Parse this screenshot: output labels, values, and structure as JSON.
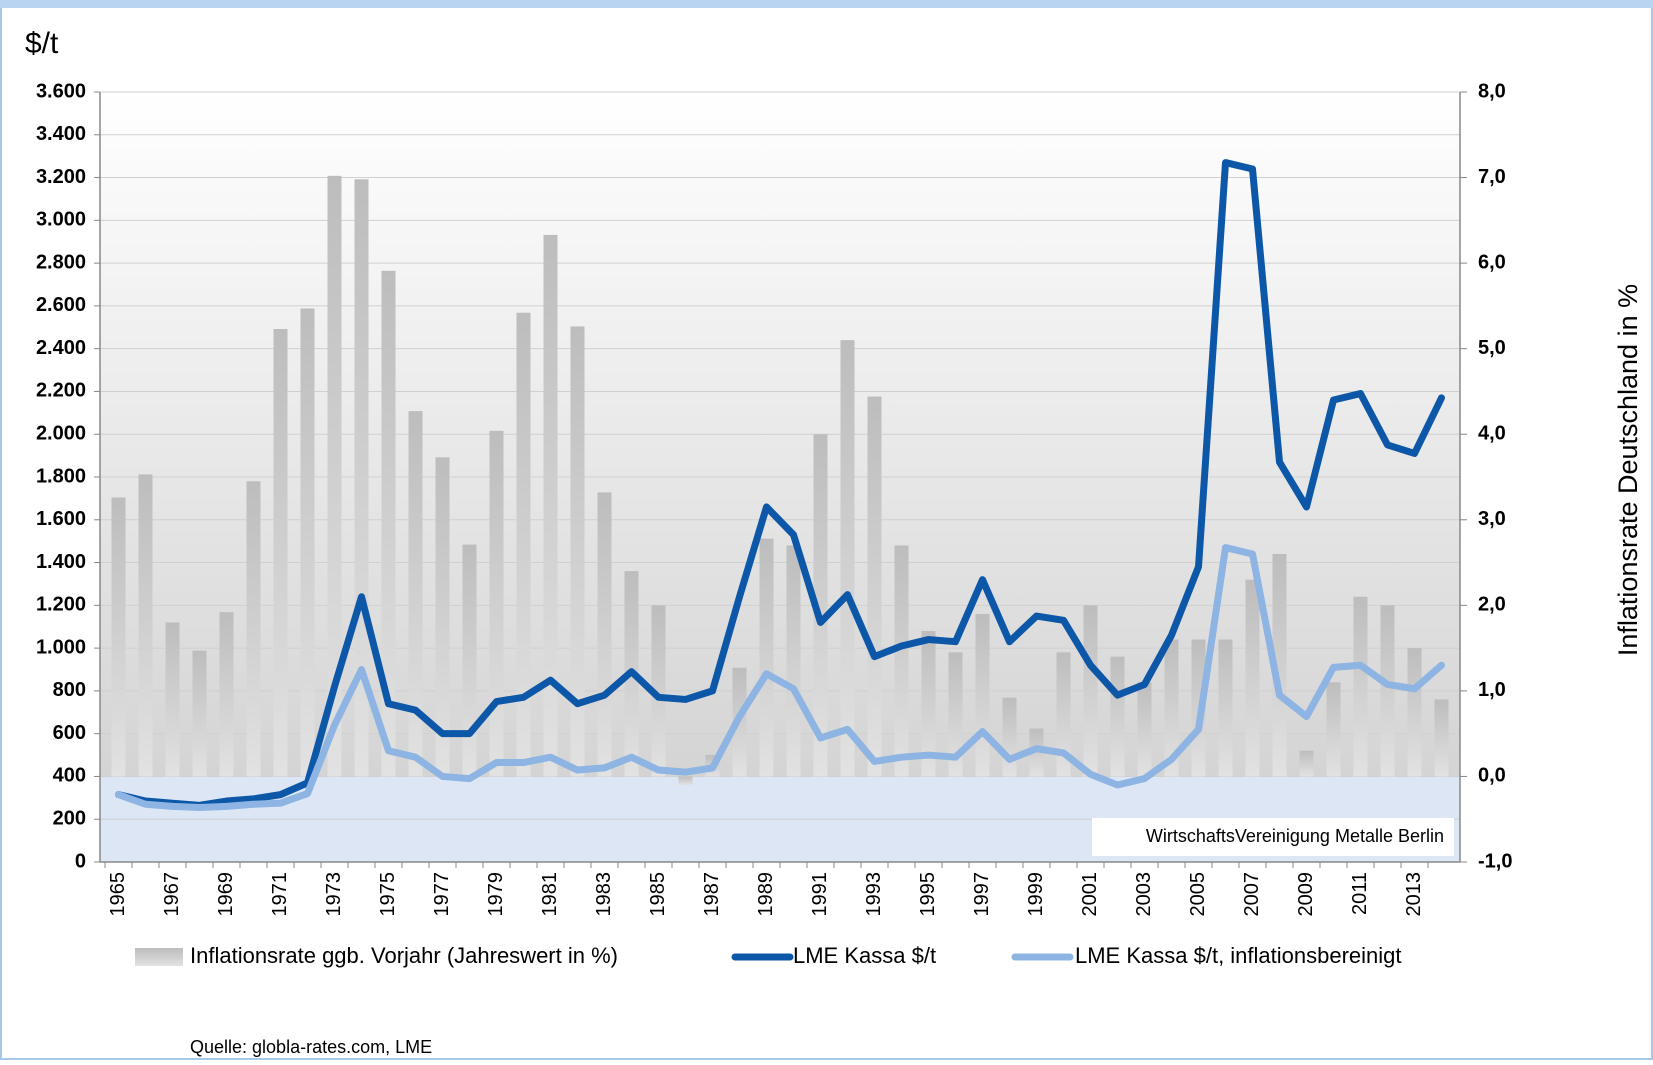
{
  "chart_data": {
    "type": "bar-line",
    "y_unit_label": "$/t",
    "y2_label": "Inflationsrate Deutschland in %",
    "annotation": "WirtschaftsVereinigung Metalle Berlin",
    "source": "Quelle: globla-rates.com, LME",
    "categories": [
      "1965",
      null,
      "1967",
      null,
      "1969",
      null,
      "1971",
      null,
      "1973",
      null,
      "1975",
      null,
      "1977",
      null,
      "1979",
      null,
      "1981",
      null,
      "1983",
      null,
      "1985",
      null,
      "1987",
      null,
      "1989",
      null,
      "1991",
      null,
      "1993",
      null,
      "1995",
      null,
      "1997",
      null,
      "1999",
      null,
      "2001",
      null,
      "2003",
      null,
      "2005",
      null,
      "2007",
      null,
      "2009",
      null,
      "2011",
      null,
      "2013",
      null
    ],
    "series": [
      {
        "name": "Inflationsrate ggb. Vorjahr (Jahreswert in %)",
        "type": "bar",
        "axis": "y2",
        "color": "#c4c4c4",
        "values": [
          3.26,
          3.53,
          1.8,
          1.47,
          1.92,
          3.45,
          5.23,
          5.47,
          7.02,
          6.98,
          5.91,
          4.27,
          3.73,
          2.71,
          4.04,
          5.42,
          6.33,
          5.26,
          3.32,
          2.4,
          2.0,
          -0.1,
          0.25,
          1.27,
          2.78,
          2.7,
          4.0,
          5.1,
          4.44,
          2.7,
          1.7,
          1.45,
          1.9,
          0.92,
          0.56,
          1.45,
          2.0,
          1.4,
          1.1,
          1.6,
          1.6,
          1.6,
          2.3,
          2.6,
          0.3,
          1.1,
          2.1,
          2.0,
          1.5,
          0.9
        ]
      },
      {
        "name": "LME Kassa $/t",
        "type": "line",
        "color": "#0d57a8",
        "values": [
          315,
          285,
          275,
          265,
          285,
          295,
          315,
          370,
          820,
          1240,
          740,
          710,
          600,
          600,
          750,
          770,
          850,
          740,
          780,
          890,
          770,
          760,
          800,
          1240,
          1660,
          1530,
          1120,
          1250,
          960,
          1010,
          1040,
          1030,
          1320,
          1030,
          1150,
          1130,
          920,
          780,
          830,
          1060,
          1380,
          3270,
          3240,
          1870,
          1660,
          2160,
          2190,
          1950,
          1910,
          2170
        ]
      },
      {
        "name": "LME Kassa $/t, inflationsbereinigt",
        "type": "line",
        "color": "#8db4e2",
        "values": [
          315,
          270,
          260,
          255,
          260,
          270,
          275,
          320,
          640,
          900,
          520,
          490,
          400,
          390,
          465,
          465,
          490,
          430,
          440,
          490,
          430,
          420,
          440,
          680,
          880,
          810,
          580,
          620,
          470,
          490,
          500,
          490,
          610,
          480,
          530,
          510,
          410,
          360,
          390,
          480,
          620,
          1470,
          1440,
          780,
          680,
          910,
          920,
          830,
          810,
          920
        ]
      }
    ],
    "ylim": [
      0,
      3600
    ],
    "yticks": [
      0,
      200,
      400,
      600,
      800,
      {
        "value": 1000,
        "label": "1.000"
      },
      {
        "value": 1200,
        "label": "1.200"
      },
      {
        "value": 1400,
        "label": "1.400"
      },
      {
        "value": 1600,
        "label": "1.600"
      },
      {
        "value": 1800,
        "label": "1.800"
      },
      {
        "value": 2000,
        "label": "2.000"
      },
      {
        "value": 2200,
        "label": "2.200"
      },
      {
        "value": 2400,
        "label": "2.400"
      },
      {
        "value": 2600,
        "label": "2.600"
      },
      {
        "value": 2800,
        "label": "2.800"
      },
      {
        "value": 3000,
        "label": "3.000"
      },
      {
        "value": 3200,
        "label": "3.200"
      },
      {
        "value": 3400,
        "label": "3.400"
      },
      {
        "value": 3600,
        "label": "3.600"
      }
    ],
    "y2lim": [
      -1,
      8
    ],
    "y2ticks": [
      {
        "value": -1,
        "label": "-1,0"
      },
      {
        "value": 0,
        "label": "0,0"
      },
      {
        "value": 1,
        "label": "1,0"
      },
      {
        "value": 2,
        "label": "2,0"
      },
      {
        "value": 3,
        "label": "3,0"
      },
      {
        "value": 4,
        "label": "4,0"
      },
      {
        "value": 5,
        "label": "5,0"
      },
      {
        "value": 6,
        "label": "6,0"
      },
      {
        "value": 7,
        "label": "7,0"
      },
      {
        "value": 8,
        "label": "8,0"
      }
    ],
    "grid": true
  }
}
